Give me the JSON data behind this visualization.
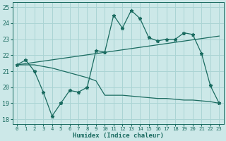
{
  "xlabel": "Humidex (Indice chaleur)",
  "bg_color": "#cce8e8",
  "grid_color": "#aad4d4",
  "line_color": "#1a6b60",
  "xlim": [
    -0.5,
    23.5
  ],
  "ylim": [
    17.7,
    25.3
  ],
  "xticks": [
    0,
    1,
    2,
    3,
    4,
    5,
    6,
    7,
    8,
    9,
    10,
    11,
    12,
    13,
    14,
    15,
    16,
    17,
    18,
    19,
    20,
    21,
    22,
    23
  ],
  "yticks": [
    18,
    19,
    20,
    21,
    22,
    23,
    24,
    25
  ],
  "line1_x": [
    0,
    1,
    2,
    3,
    4,
    5,
    6,
    7,
    8,
    9,
    10,
    11,
    12,
    13,
    14,
    15,
    16,
    17,
    18,
    19,
    20,
    21,
    22,
    23
  ],
  "line1_y": [
    21.4,
    21.7,
    21.0,
    19.7,
    18.2,
    19.0,
    19.8,
    19.7,
    20.0,
    22.3,
    22.2,
    24.5,
    23.7,
    24.8,
    24.3,
    23.1,
    22.9,
    23.0,
    23.0,
    23.4,
    23.3,
    22.1,
    20.1,
    19.0
  ],
  "line2_x": [
    0,
    23
  ],
  "line2_y": [
    21.4,
    23.2
  ],
  "line3_x": [
    0,
    1,
    2,
    3,
    4,
    5,
    6,
    7,
    8,
    9,
    10,
    11,
    12,
    13,
    14,
    15,
    16,
    17,
    18,
    19,
    20,
    21,
    22,
    23
  ],
  "line3_y": [
    21.4,
    21.4,
    21.4,
    21.3,
    21.2,
    21.05,
    20.9,
    20.75,
    20.6,
    20.4,
    19.5,
    19.5,
    19.5,
    19.45,
    19.4,
    19.35,
    19.3,
    19.3,
    19.25,
    19.2,
    19.2,
    19.15,
    19.1,
    19.0
  ],
  "xtick_fontsize": 5.2,
  "ytick_fontsize": 6.0,
  "xlabel_fontsize": 6.5
}
